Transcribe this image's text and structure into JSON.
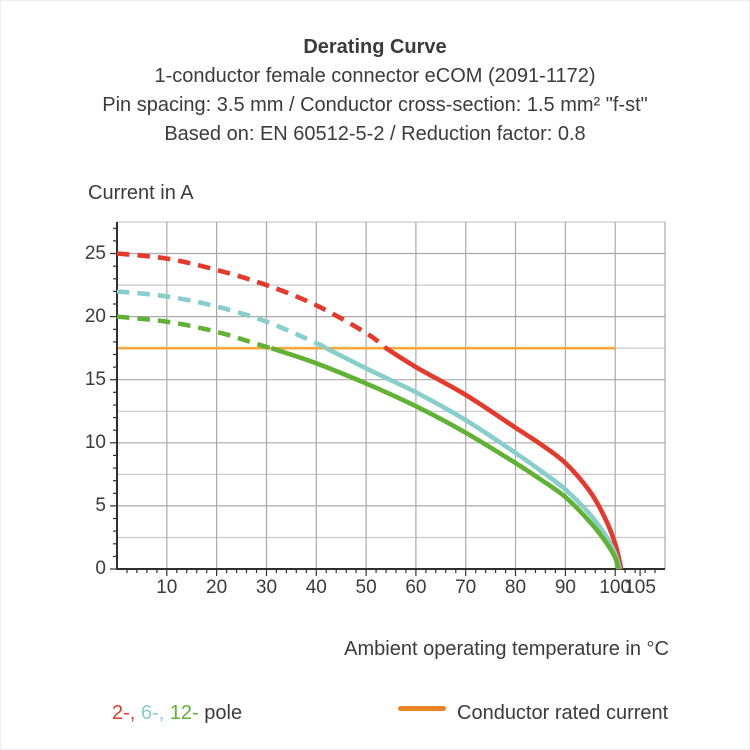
{
  "header": {
    "title": "Derating Curve",
    "subtitle_connector": "1-conductor female connector eCOM (2091-1172)",
    "subtitle_spec": "Pin spacing: 3.5 mm / Conductor cross-section: 1.5 mm² \"f-st\"",
    "subtitle_basis": "Based on: EN 60512-5-2 / Reduction factor: 0.8"
  },
  "chart_data": {
    "type": "line",
    "title": "Derating Curve",
    "y_axis_title": "Current in A",
    "x_axis_title": "Ambient operating temperature in °C",
    "xlim": [
      0,
      110
    ],
    "ylim": [
      0,
      27.5
    ],
    "x_tick_values": [
      10,
      20,
      30,
      40,
      50,
      60,
      70,
      80,
      90,
      100,
      105
    ],
    "x_tick_labels": [
      "10",
      "20",
      "30",
      "40",
      "50",
      "60",
      "70",
      "80",
      "90",
      "100",
      "105"
    ],
    "y_tick_values": [
      0,
      5,
      10,
      15,
      20,
      25
    ],
    "y_tick_labels": [
      "0",
      "5",
      "10",
      "15",
      "20",
      "25"
    ],
    "x_gridline_step": 10,
    "y_gridline_minor_step": 2.5,
    "y_gridline_major_step": 5,
    "grid": "on",
    "rated_current_line": {
      "label": "Conductor rated current",
      "value": 17.5,
      "x_start": 0,
      "x_end": 100,
      "color": "#F5A93E"
    },
    "series": [
      {
        "name": "2-pole",
        "color": "#E5392B",
        "style_above_rated": "dashed",
        "solid_from": 54,
        "points": [
          [
            0,
            25
          ],
          [
            10,
            24.6
          ],
          [
            20,
            23.7
          ],
          [
            30,
            22.5
          ],
          [
            40,
            20.9
          ],
          [
            50,
            18.7
          ],
          [
            54,
            17.5
          ],
          [
            60,
            16.0
          ],
          [
            70,
            13.8
          ],
          [
            80,
            11.2
          ],
          [
            85,
            9.9
          ],
          [
            90,
            8.4
          ],
          [
            95,
            6.1
          ],
          [
            98,
            4.0
          ],
          [
            100,
            2.0
          ],
          [
            101.2,
            0
          ]
        ]
      },
      {
        "name": "6-pole",
        "color": "#87CECC",
        "style_above_rated": "dashed",
        "solid_from": 42,
        "points": [
          [
            0,
            22
          ],
          [
            10,
            21.6
          ],
          [
            20,
            20.8
          ],
          [
            30,
            19.6
          ],
          [
            40,
            17.9
          ],
          [
            42,
            17.5
          ],
          [
            50,
            15.9
          ],
          [
            60,
            14.0
          ],
          [
            70,
            11.8
          ],
          [
            80,
            9.2
          ],
          [
            85,
            7.8
          ],
          [
            90,
            6.3
          ],
          [
            95,
            4.3
          ],
          [
            98,
            2.7
          ],
          [
            100,
            1.2
          ],
          [
            100.9,
            0
          ]
        ]
      },
      {
        "name": "12-pole",
        "color": "#61B234",
        "style_above_rated": "dashed",
        "solid_from": 31,
        "points": [
          [
            0,
            20
          ],
          [
            10,
            19.6
          ],
          [
            20,
            18.8
          ],
          [
            30,
            17.6
          ],
          [
            31,
            17.5
          ],
          [
            40,
            16.3
          ],
          [
            50,
            14.7
          ],
          [
            60,
            12.9
          ],
          [
            70,
            10.8
          ],
          [
            80,
            8.4
          ],
          [
            85,
            7.1
          ],
          [
            90,
            5.7
          ],
          [
            95,
            3.7
          ],
          [
            98,
            2.2
          ],
          [
            100,
            0.9
          ],
          [
            100.6,
            0
          ]
        ]
      }
    ]
  },
  "legend": {
    "pole_items": [
      {
        "text": "2-,",
        "color": "#E5392B"
      },
      {
        "text": "6-,",
        "color": "#87CECC"
      },
      {
        "text": "12-",
        "color": "#61B234"
      }
    ],
    "pole_suffix": "pole",
    "rated_swatch_color": "#EE8522",
    "rated_label": "Conductor rated current"
  },
  "colors": {
    "text": "#3b3b3b",
    "axis": "#2f2f2f",
    "grid_major": "#a9a9a9",
    "grid_minor": "#c9c9c9",
    "background": "#ffffff"
  }
}
